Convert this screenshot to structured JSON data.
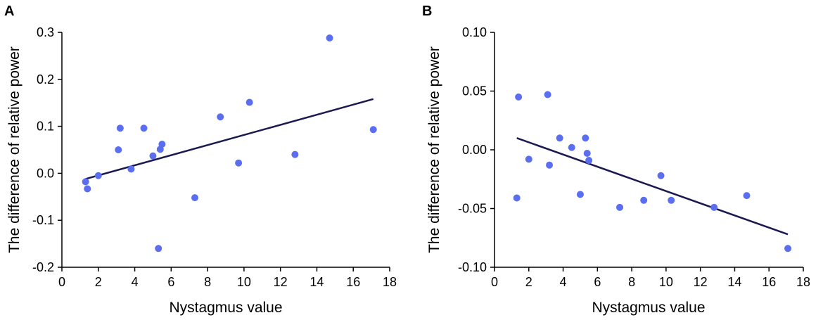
{
  "chart_data": [
    {
      "panel": "A",
      "type": "scatter",
      "title": "",
      "xlabel": "Nystagmus value",
      "ylabel": "The difference of relative power",
      "xlim": [
        0,
        18
      ],
      "ylim": [
        -0.2,
        0.3
      ],
      "xticks": [
        0,
        2,
        4,
        6,
        8,
        10,
        12,
        14,
        16,
        18
      ],
      "yticks": [
        -0.2,
        -0.1,
        0.0,
        0.1,
        0.2,
        0.3
      ],
      "ytick_labels": [
        "-0.2",
        "-0.1",
        "0.0",
        "0.1",
        "0.2",
        "0.3"
      ],
      "xtick_labels": [
        "0",
        "2",
        "4",
        "6",
        "8",
        "10",
        "12",
        "14",
        "16",
        "18"
      ],
      "point_color": "#5b6ef0",
      "line_color": "#1a1a50",
      "points": [
        {
          "x": 1.3,
          "y": -0.018
        },
        {
          "x": 1.4,
          "y": -0.033
        },
        {
          "x": 2.0,
          "y": -0.005
        },
        {
          "x": 3.1,
          "y": 0.05
        },
        {
          "x": 3.2,
          "y": 0.096
        },
        {
          "x": 3.8,
          "y": 0.009
        },
        {
          "x": 4.5,
          "y": 0.096
        },
        {
          "x": 5.0,
          "y": 0.037
        },
        {
          "x": 5.3,
          "y": -0.16
        },
        {
          "x": 5.4,
          "y": 0.051
        },
        {
          "x": 5.5,
          "y": 0.062
        },
        {
          "x": 7.3,
          "y": -0.052
        },
        {
          "x": 8.7,
          "y": 0.12
        },
        {
          "x": 9.7,
          "y": 0.022
        },
        {
          "x": 10.3,
          "y": 0.151
        },
        {
          "x": 12.8,
          "y": 0.04
        },
        {
          "x": 14.7,
          "y": 0.288
        },
        {
          "x": 17.1,
          "y": 0.093
        }
      ],
      "fit_line": {
        "x1": 1.3,
        "y1": -0.012,
        "x2": 17.1,
        "y2": 0.158
      }
    },
    {
      "panel": "B",
      "type": "scatter",
      "title": "",
      "xlabel": "Nystagmus value",
      "ylabel": "The difference of relative power",
      "xlim": [
        0,
        18
      ],
      "ylim": [
        -0.1,
        0.1
      ],
      "xticks": [
        0,
        2,
        4,
        6,
        8,
        10,
        12,
        14,
        16,
        18
      ],
      "yticks": [
        -0.1,
        -0.05,
        0.0,
        0.05,
        0.1
      ],
      "ytick_labels": [
        "-0.10",
        "-0.05",
        "0.00",
        "0.05",
        "0.10"
      ],
      "xtick_labels": [
        "0",
        "2",
        "4",
        "6",
        "8",
        "10",
        "12",
        "14",
        "16",
        "18"
      ],
      "point_color": "#5b6ef0",
      "line_color": "#1a1a50",
      "points": [
        {
          "x": 1.3,
          "y": -0.041
        },
        {
          "x": 1.4,
          "y": 0.045
        },
        {
          "x": 2.0,
          "y": -0.008
        },
        {
          "x": 3.1,
          "y": 0.047
        },
        {
          "x": 3.2,
          "y": -0.013
        },
        {
          "x": 3.8,
          "y": 0.01
        },
        {
          "x": 4.5,
          "y": 0.002
        },
        {
          "x": 5.0,
          "y": -0.038
        },
        {
          "x": 5.3,
          "y": 0.01
        },
        {
          "x": 5.4,
          "y": -0.003
        },
        {
          "x": 5.5,
          "y": -0.009
        },
        {
          "x": 7.3,
          "y": -0.049
        },
        {
          "x": 8.7,
          "y": -0.043
        },
        {
          "x": 9.7,
          "y": -0.022
        },
        {
          "x": 10.3,
          "y": -0.043
        },
        {
          "x": 12.8,
          "y": -0.049
        },
        {
          "x": 14.7,
          "y": -0.039
        },
        {
          "x": 17.1,
          "y": -0.084
        }
      ],
      "fit_line": {
        "x1": 1.3,
        "y1": 0.01,
        "x2": 17.1,
        "y2": -0.072
      }
    }
  ]
}
